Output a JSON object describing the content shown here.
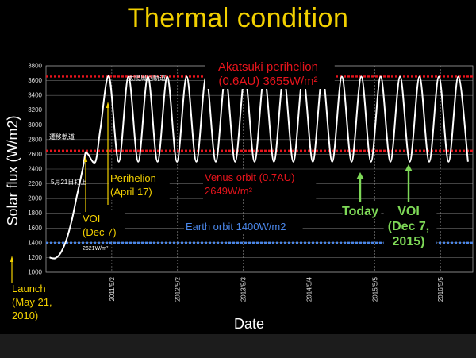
{
  "title": "Thermal condition",
  "chart_data": {
    "type": "line",
    "xlabel": "Date",
    "ylabel": "Solar flux (W/m2)",
    "ylim": [
      1000,
      3800
    ],
    "yticks": [
      1000,
      1200,
      1400,
      1600,
      1800,
      2000,
      2200,
      2400,
      2600,
      2800,
      3000,
      3200,
      3400,
      3600,
      3800
    ],
    "xtick_labels": [
      "2011/5/2",
      "2012/5/2",
      "2013/5/3",
      "2014/5/4",
      "2015/5/5",
      "2016/5/5"
    ],
    "grid": true,
    "series": [
      {
        "x": [
          "2010-05-21",
          "2010-06-21",
          "2010-07-21",
          "2010-08-21",
          "2010-09-21",
          "2010-10-21",
          "2010-11-21",
          "2010-12-07",
          "2010-12-21",
          "2011-01-31",
          "2011-02-28",
          "2011-04-17",
          "2011-06-10",
          "2011-08-03",
          "2011-09-26",
          "2011-11-19",
          "2012-01-12",
          "2012-03-06",
          "2012-04-29",
          "2012-06-22",
          "2012-08-15",
          "2012-10-08",
          "2012-12-01",
          "2013-01-24",
          "2013-03-19",
          "2013-05-12",
          "2013-07-05",
          "2013-08-28",
          "2013-10-21",
          "2013-12-14",
          "2014-02-06",
          "2014-04-01",
          "2014-05-25",
          "2014-07-18",
          "2014-09-10",
          "2014-11-03",
          "2014-12-27",
          "2015-02-19",
          "2015-04-14",
          "2015-06-07",
          "2015-07-31",
          "2015-09-23",
          "2015-11-16",
          "2016-01-09",
          "2016-03-03",
          "2016-04-26",
          "2016-06-19",
          "2016-08-12",
          "2016-10-05"
        ],
        "y": [
          1200,
          1190,
          1260,
          1430,
          1700,
          2050,
          2400,
          2621,
          2600,
          2500,
          2950,
          3655,
          2500,
          3655,
          2500,
          3655,
          2500,
          3655,
          2500,
          3655,
          2500,
          3655,
          2500,
          3655,
          2500,
          3655,
          2500,
          3655,
          2500,
          3655,
          2500,
          3655,
          2500,
          3655,
          2500,
          3655,
          2500,
          3655,
          2500,
          3655,
          2500,
          3655,
          2500,
          3655,
          2500,
          3655,
          2500,
          3655,
          2500
        ]
      }
    ],
    "reference_lines": [
      {
        "y": 3655,
        "color": "#e8141c"
      },
      {
        "y": 2649,
        "color": "#e8141c"
      },
      {
        "y": 1400,
        "color": "#4a86e8"
      }
    ],
    "annotations": [
      {
        "lines": [
          "Akatsuki perihelion",
          "(0.6AU) 3655W/m²"
        ],
        "color": "#e8141c"
      },
      {
        "lines": [
          "Venus orbit (0.7AU)",
          "2649W/m²"
        ],
        "color": "#e8141c"
      },
      {
        "lines": [
          "Earth orbit 1400W/m2"
        ],
        "color": "#4a86e8"
      },
      {
        "lines": [
          "Perihelion",
          "(April 17)"
        ],
        "color": "#f2d000"
      },
      {
        "lines": [
          "VOI",
          "(Dec 7)"
        ],
        "color": "#f2d000"
      },
      {
        "lines": [
          "Launch",
          "(May 21,",
          "2010)"
        ],
        "color": "#f2d000"
      },
      {
        "lines": [
          "Today"
        ],
        "color": "#7ed957"
      },
      {
        "lines": [
          "VOI",
          "(Dec 7,",
          "2015)"
        ],
        "color": "#7ed957"
      },
      {
        "lines": [
          "太陽周回軌道"
        ],
        "color": "#ffffff"
      },
      {
        "lines": [
          "遷移軌道"
        ],
        "color": "#ffffff"
      },
      {
        "lines": [
          "5月21日打上"
        ],
        "color": "#ffffff"
      },
      {
        "lines": [
          "2621W/m²"
        ],
        "color": "#ffffff"
      }
    ]
  }
}
